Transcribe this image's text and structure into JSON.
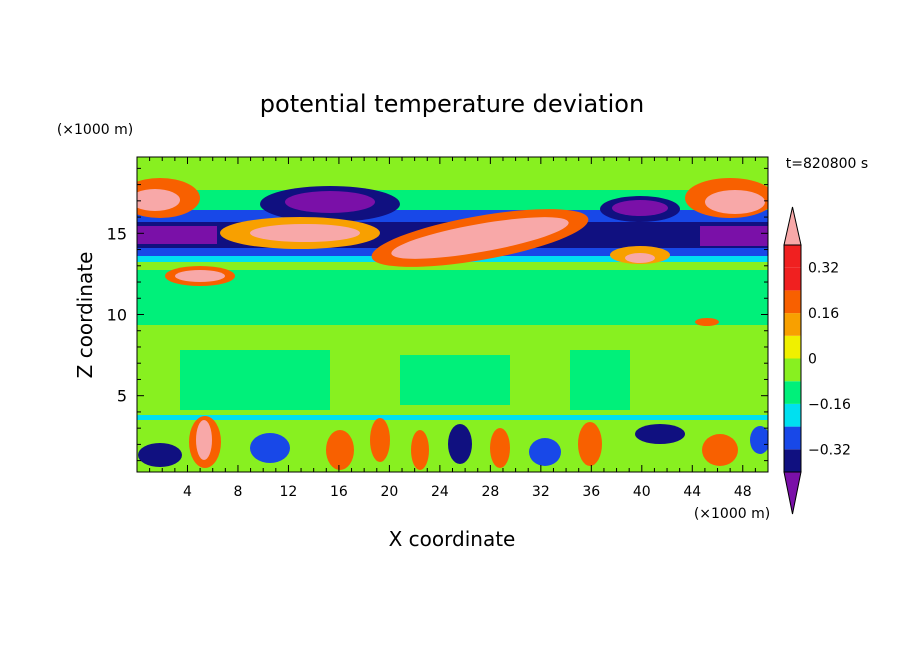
{
  "chart_data": {
    "type": "heatmap",
    "title": "potential temperature deviation",
    "xlabel": "X coordinate",
    "ylabel": "Z coordinate",
    "x_unit": "(×1000 m)",
    "y_unit": "(×1000 m)",
    "time_label": "t=820800 s",
    "xlim": [
      0,
      50
    ],
    "ylim": [
      0.3,
      19.7
    ],
    "x_ticks": [
      "4",
      "8",
      "12",
      "16",
      "20",
      "24",
      "28",
      "32",
      "36",
      "40",
      "44",
      "48"
    ],
    "y_ticks": [
      "5",
      "10",
      "15"
    ],
    "colorbar": {
      "levels": [
        -0.4,
        -0.32,
        -0.24,
        -0.16,
        -0.08,
        0,
        0.08,
        0.16,
        0.24,
        0.32,
        0.4
      ],
      "tick_labels": [
        "0.32",
        "0.16",
        "0",
        "−0.16",
        "−0.32"
      ],
      "tick_values": [
        0.32,
        0.16,
        0,
        -0.16,
        -0.32
      ],
      "colors": [
        "#7a10a8",
        "#101080",
        "#1848e8",
        "#00e0f0",
        "#00f07a",
        "#88f020",
        "#f0f000",
        "#f8a000",
        "#f86000",
        "#f02020",
        "#f8a8a8"
      ]
    }
  }
}
